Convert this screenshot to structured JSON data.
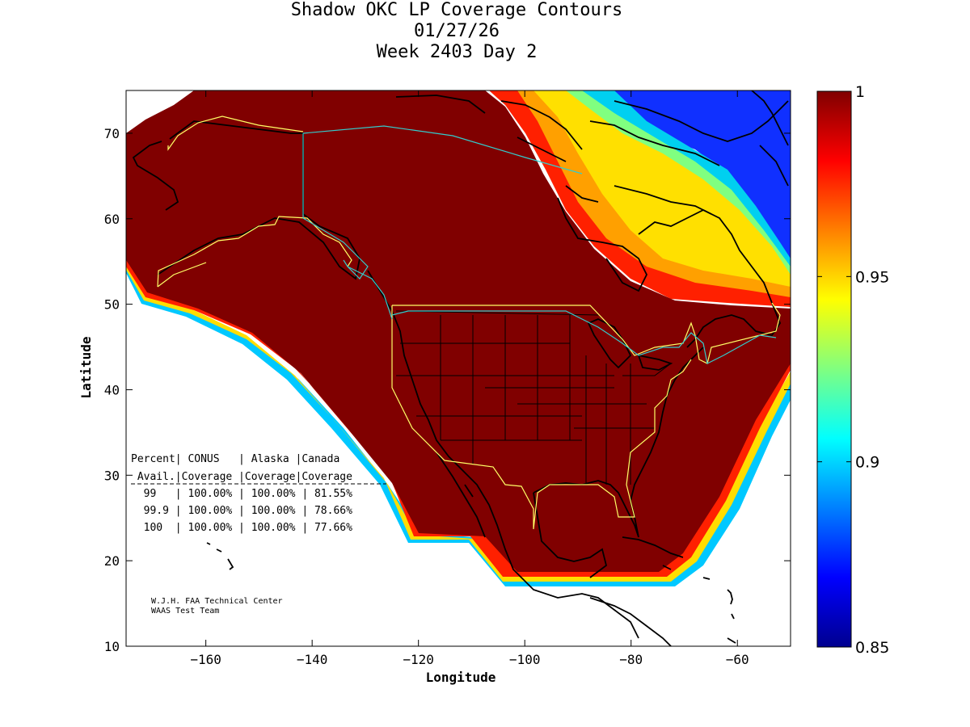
{
  "title": {
    "line1": "Shadow OKC LP Coverage Contours",
    "line2": "01/27/26",
    "line3": "Week 2403 Day 2"
  },
  "axes": {
    "xlabel": "Longitude",
    "ylabel": "Latitude",
    "xlim": [
      -175,
      -50
    ],
    "ylim": [
      10,
      75
    ],
    "xticks": [
      -160,
      -140,
      -120,
      -100,
      -80,
      -60
    ],
    "yticks": [
      10,
      20,
      30,
      40,
      50,
      60,
      70
    ]
  },
  "colorbar": {
    "min": 0.85,
    "max": 1,
    "tick_labels": [
      "1",
      "0.95",
      "0.9",
      "0.85"
    ],
    "tick_values": [
      1,
      0.95,
      0.9,
      0.85
    ],
    "colormap": "jet"
  },
  "stats_table": {
    "header1": "Percent| CONUS   | Alaska |Canada",
    "header2": " Avail.|Coverage |Coverage|Coverage",
    "rows": [
      "  99   | 100.00% | 100.00% | 81.55%",
      "  99.9 | 100.00% | 100.00% | 78.66%",
      "  100  | 100.00% | 100.00% | 77.66%"
    ]
  },
  "credits": {
    "line1": "W.J.H. FAA Technical Center",
    "line2": "WAAS Test Team"
  },
  "chart_data": {
    "type": "contour-map",
    "title": "Shadow OKC LP Coverage Contours",
    "xlabel": "Longitude",
    "ylabel": "Latitude",
    "xlim": [
      -175,
      -50
    ],
    "ylim": [
      10,
      75
    ],
    "color_range": [
      0.85,
      1
    ],
    "coverage": {
      "CONUS": {
        "99": "100.00%",
        "99.9": "100.00%",
        "100": "100.00%"
      },
      "Alaska": {
        "99": "100.00%",
        "99.9": "100.00%",
        "100": "100.00%"
      },
      "Canada": {
        "99": "81.55%",
        "99.9": "78.66%",
        "100": "77.66%"
      }
    }
  },
  "colors": {
    "full_coverage": "#800000",
    "service_outline_conus": "#ffff66",
    "service_outline_canada": "#33cccc",
    "coastline": "#000000"
  }
}
